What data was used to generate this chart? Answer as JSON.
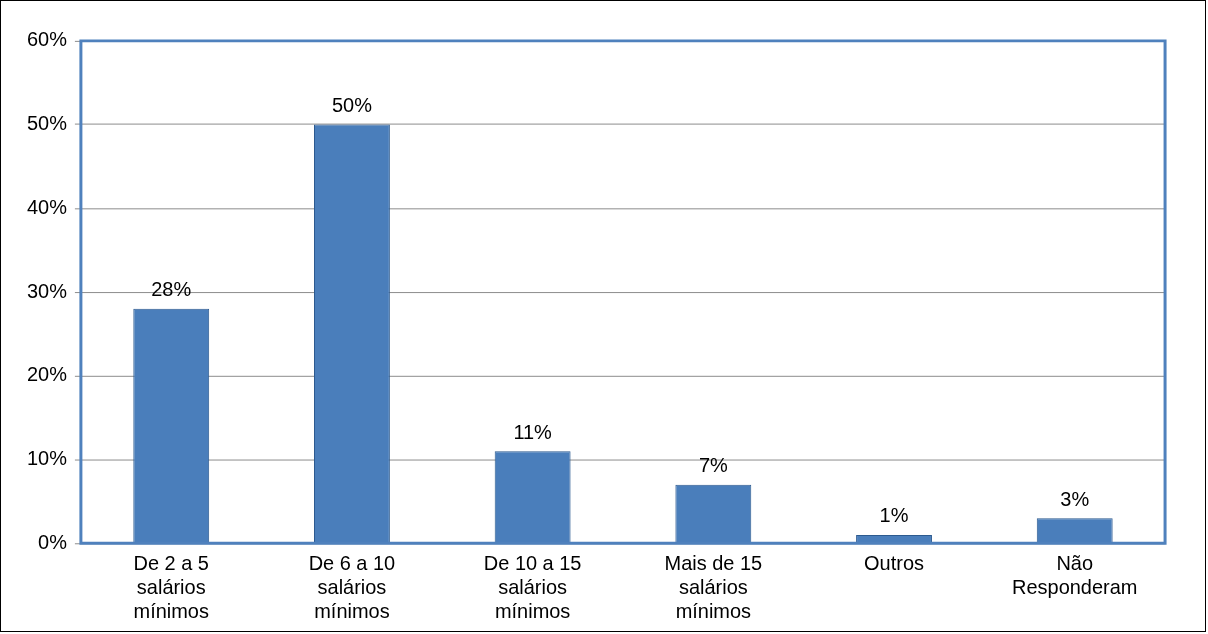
{
  "chart_data": {
    "type": "bar",
    "categories": [
      "De 2 a 5 salários mínimos",
      "De 6 a 10 salários mínimos",
      "De 10 a 15 salários mínimos",
      "Mais de 15 salários mínimos",
      "Outros",
      "Não Responderam"
    ],
    "values": [
      28,
      50,
      11,
      7,
      1,
      3
    ],
    "value_labels": [
      "28%",
      "50%",
      "11%",
      "7%",
      "1%",
      "3%"
    ],
    "color": "#4a7ebb",
    "ylim": [
      0,
      60
    ],
    "yticks": [
      {
        "value": 0,
        "label": "0%"
      },
      {
        "value": 10,
        "label": "10%"
      },
      {
        "value": 20,
        "label": "20%"
      },
      {
        "value": 30,
        "label": "30%"
      },
      {
        "value": 40,
        "label": "40%"
      },
      {
        "value": 50,
        "label": "50%"
      },
      {
        "value": 60,
        "label": "60%"
      }
    ],
    "grid": "y"
  }
}
